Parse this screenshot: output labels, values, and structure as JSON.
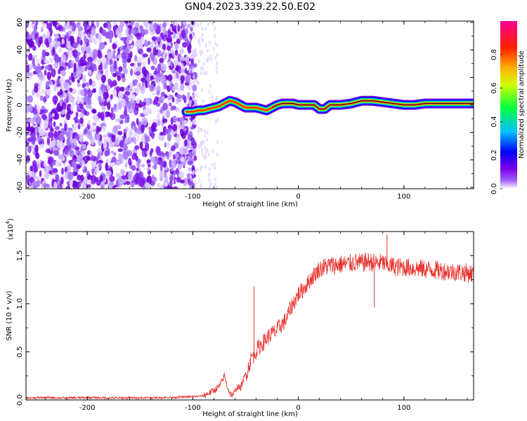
{
  "figure": {
    "title": "GN04.2023.339.22.50.E02"
  },
  "chart_data": [
    {
      "type": "heatmap",
      "x_range": [
        -258,
        166
      ],
      "ylim": [
        -61,
        61
      ],
      "xlabel": "Height of straight line (km)",
      "ylabel": "Frequency (Hz)",
      "x_ticks": [
        -200,
        -100,
        0,
        100
      ],
      "x_tick_labels": [
        "-200",
        "-100",
        "0",
        "100"
      ],
      "y_ticks": [
        -60,
        -40,
        -20,
        0,
        20,
        40,
        60
      ],
      "y_tick_labels": [
        "-60",
        "-40",
        "-20",
        "0",
        "20",
        "40",
        "60"
      ],
      "colorbar": {
        "label": "Normalized spectral amplitude",
        "range": [
          0,
          1
        ],
        "ticks": [
          0.0,
          0.2,
          0.4,
          0.6,
          0.8
        ],
        "tick_labels": [
          "0.0",
          "0.2",
          "0.4",
          "0.6",
          "0.8"
        ],
        "colormap": [
          "#ffffff",
          "#7a00e6",
          "#0000ff",
          "#00c0ff",
          "#00ff40",
          "#ffff00",
          "#ff8000",
          "#ff0000",
          "#ff0090"
        ]
      },
      "noise_region_x": [
        -258,
        -103
      ],
      "ridge_x": [
        -106,
        -100,
        -95,
        -90,
        -85,
        -80,
        -75,
        -70,
        -65,
        -60,
        -55,
        -50,
        -45,
        -40,
        -35,
        -30,
        -25,
        -20,
        -15,
        -10,
        -5,
        0,
        10,
        15,
        20,
        25,
        30,
        40,
        50,
        55,
        60,
        70,
        80,
        90,
        100,
        110,
        120,
        140,
        166
      ],
      "ridge_freq": [
        -5,
        -5,
        -4,
        -4,
        -3,
        -2,
        -1,
        1,
        3,
        2,
        0,
        -2,
        -2,
        -2,
        -3,
        -4,
        -2,
        0,
        1,
        1,
        1,
        0,
        0,
        0,
        -3,
        -3,
        0,
        0,
        1,
        2,
        3,
        3,
        2,
        1,
        0,
        0,
        1,
        1,
        1
      ]
    },
    {
      "type": "line",
      "x_range": [
        -258,
        166
      ],
      "ylim": [
        0,
        17500
      ],
      "xlabel": "Height of straight line (km)",
      "ylabel": "SNR (10 * v/v)",
      "y_multiplier_label": "(x10",
      "y_multiplier_exp": "4",
      "y_multiplier_close": ")",
      "x_ticks": [
        -200,
        -100,
        0,
        100
      ],
      "x_tick_labels": [
        "-200",
        "-100",
        "0",
        "100"
      ],
      "y_ticks": [
        0,
        5000,
        10000,
        15000
      ],
      "y_tick_labels": [
        "0.0",
        "0.5",
        "1.0",
        "1.5"
      ],
      "color": "#e8332f",
      "series": [
        {
          "x": [
            -258,
            -240,
            -220,
            -200,
            -180,
            -160,
            -140,
            -120,
            -110,
            -100,
            -95,
            -90,
            -85,
            -80,
            -75,
            -72,
            -70,
            -68,
            -65,
            -62,
            -60,
            -58,
            -55,
            -52,
            -50,
            -48,
            -46,
            -44,
            -42,
            -41,
            -40,
            -38,
            -35,
            -32,
            -30,
            -28,
            -25,
            -22,
            -20,
            -18,
            -15,
            -12,
            -10,
            -8,
            -5,
            -2,
            0,
            2,
            5,
            8,
            10,
            12,
            15,
            18,
            20,
            22,
            25,
            28,
            30,
            35,
            40,
            45,
            50,
            55,
            60,
            65,
            70,
            75,
            80,
            82,
            85,
            90,
            95,
            100,
            110,
            120,
            130,
            140,
            150,
            160,
            166
          ],
          "y": [
            200,
            250,
            200,
            250,
            200,
            220,
            230,
            260,
            300,
            350,
            380,
            450,
            700,
            1000,
            1400,
            2000,
            2600,
            1600,
            700,
            500,
            900,
            1400,
            1200,
            2100,
            2700,
            3100,
            3900,
            4500,
            4700,
            4900,
            5100,
            5400,
            5800,
            6100,
            6400,
            6600,
            6900,
            7100,
            7300,
            7600,
            7900,
            8300,
            8800,
            9400,
            10000,
            10600,
            11000,
            11200,
            11600,
            12000,
            12300,
            12600,
            13000,
            13400,
            13600,
            13700,
            13800,
            13900,
            14000,
            14000,
            14100,
            14100,
            14200,
            14300,
            14200,
            14400,
            14300,
            14200,
            14300,
            14100,
            14000,
            13900,
            13800,
            13800,
            13700,
            13600,
            13500,
            13400,
            13300,
            13200,
            13100
          ]
        }
      ],
      "spikes": [
        {
          "x": -42,
          "y": 11800
        },
        {
          "x": 72,
          "y": 9600
        },
        {
          "x": 84,
          "y": 17200
        }
      ]
    }
  ]
}
